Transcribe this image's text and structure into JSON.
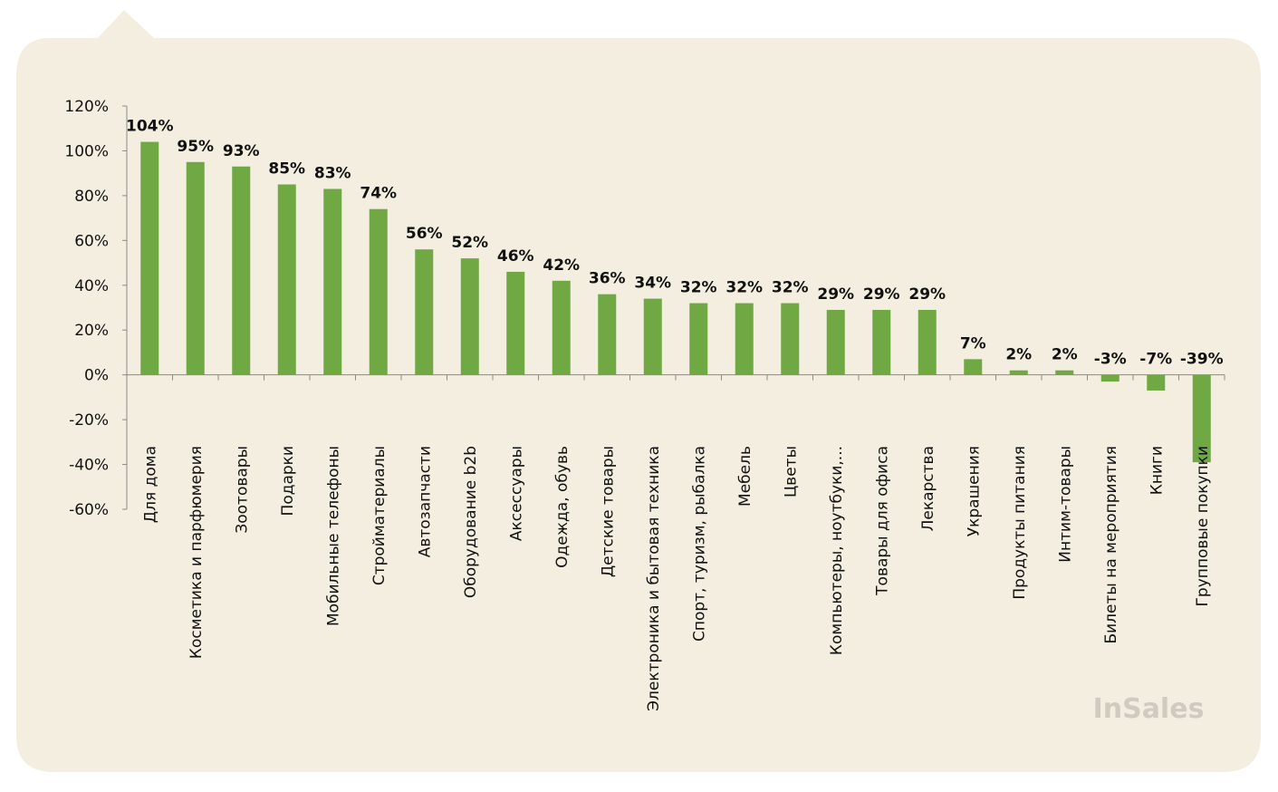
{
  "chart_data": {
    "type": "bar",
    "categories": [
      "Для дома",
      "Косметика и парфюмерия",
      "Зоотовары",
      "Подарки",
      "Мобильные телефоны",
      "Стройматериалы",
      "Автозапчасти",
      "Оборудование b2b",
      "Аксессуары",
      "Одежда, обувь",
      "Детские товары",
      "Электроника и бытовая техника",
      "Спорт, туризм, рыбалка",
      "Мебель",
      "Цветы",
      "Компьютеры, ноутбуки,...",
      "Товары для офиса",
      "Лекарства",
      "Украшения",
      "Продукты питания",
      "Интим-товары",
      "Билеты на мероприятия",
      "Книги",
      "Групповые покупки"
    ],
    "values": [
      104,
      95,
      93,
      85,
      83,
      74,
      56,
      52,
      46,
      42,
      36,
      34,
      32,
      32,
      32,
      29,
      29,
      29,
      7,
      2,
      2,
      -3,
      -7,
      -39
    ],
    "value_labels": [
      "104%",
      "95%",
      "93%",
      "85%",
      "83%",
      "74%",
      "56%",
      "52%",
      "46%",
      "42%",
      "36%",
      "34%",
      "32%",
      "32%",
      "32%",
      "29%",
      "29%",
      "29%",
      "7%",
      "2%",
      "2%",
      "-3%",
      "-7%",
      "-39%"
    ],
    "yticks": [
      "120%",
      "100%",
      "80%",
      "60%",
      "40%",
      "20%",
      "0%",
      "-20%",
      "-40%",
      "-60%"
    ],
    "ylim": [
      -60,
      120
    ],
    "bar_color": "#70a844",
    "background_color": "#f3eee0",
    "grid": false,
    "title": "",
    "xlabel": "",
    "ylabel": ""
  },
  "logo": {
    "text": "InSales"
  }
}
